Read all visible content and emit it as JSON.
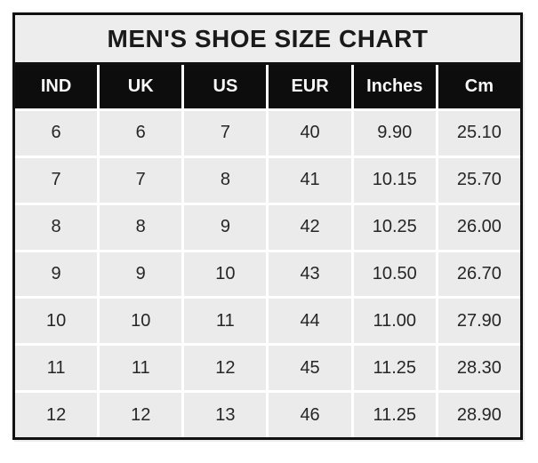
{
  "chart_data": {
    "type": "table",
    "title": "MEN'S SHOE SIZE CHART",
    "columns": [
      "IND",
      "UK",
      "US",
      "EUR",
      "Inches",
      "Cm"
    ],
    "rows": [
      [
        "6",
        "6",
        "7",
        "40",
        "9.90",
        "25.10"
      ],
      [
        "7",
        "7",
        "8",
        "41",
        "10.15",
        "25.70"
      ],
      [
        "8",
        "8",
        "9",
        "42",
        "10.25",
        "26.00"
      ],
      [
        "9",
        "9",
        "10",
        "43",
        "10.50",
        "26.70"
      ],
      [
        "10",
        "10",
        "11",
        "44",
        "11.00",
        "27.90"
      ],
      [
        "11",
        "11",
        "12",
        "45",
        "11.25",
        "28.30"
      ],
      [
        "12",
        "12",
        "13",
        "46",
        "11.25",
        "28.90"
      ]
    ]
  },
  "colors": {
    "border": "#111111",
    "title_bg": "#ededed",
    "header_bg": "#0d0d0d",
    "header_text": "#f8f8f8",
    "cell_bg": "#ebebeb",
    "cell_text": "#262626",
    "grid_line": "#ffffff"
  }
}
